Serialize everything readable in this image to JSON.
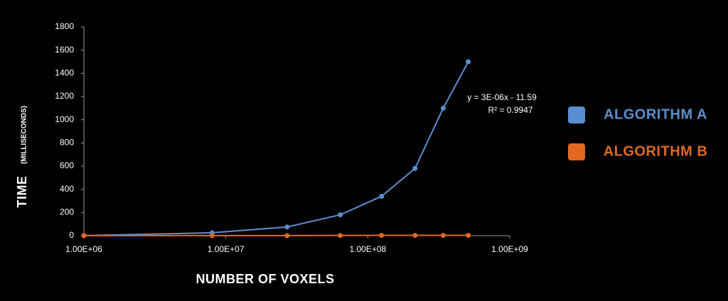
{
  "chart_data": {
    "type": "line",
    "xlabel": "NUMBER OF VOXELS",
    "ylabel": "TIME",
    "ylabel_unit": "(MILLISECONDS)",
    "x_scale": "log",
    "x": [
      1000000,
      8000000,
      27000000,
      64000000,
      125000000,
      215000000,
      340000000,
      510000000
    ],
    "series": [
      {
        "name": "ALGORITHM A",
        "color": "#5b8ed0",
        "values": [
          1,
          25,
          75,
          180,
          340,
          580,
          1100,
          1500
        ]
      },
      {
        "name": "ALGORITHM B",
        "color": "#e0691f",
        "values": [
          1,
          1,
          1,
          2,
          3,
          3,
          3,
          3
        ]
      }
    ],
    "xlim": [
      1000000,
      1000000000
    ],
    "xticks": [
      {
        "value": 1000000,
        "label": "1.00E+06"
      },
      {
        "value": 10000000,
        "label": "1.00E+07"
      },
      {
        "value": 100000000,
        "label": "1.00E+08"
      },
      {
        "value": 1000000000,
        "label": "1.00E+09"
      }
    ],
    "ylim": [
      0,
      1800
    ],
    "yticks": [
      0,
      200,
      400,
      600,
      800,
      1000,
      1200,
      1400,
      1600,
      1800
    ],
    "annotations": [
      "y = 3E-06x - 11.59",
      "R² = 0.9947"
    ],
    "legend_position": "right",
    "grid": false
  }
}
